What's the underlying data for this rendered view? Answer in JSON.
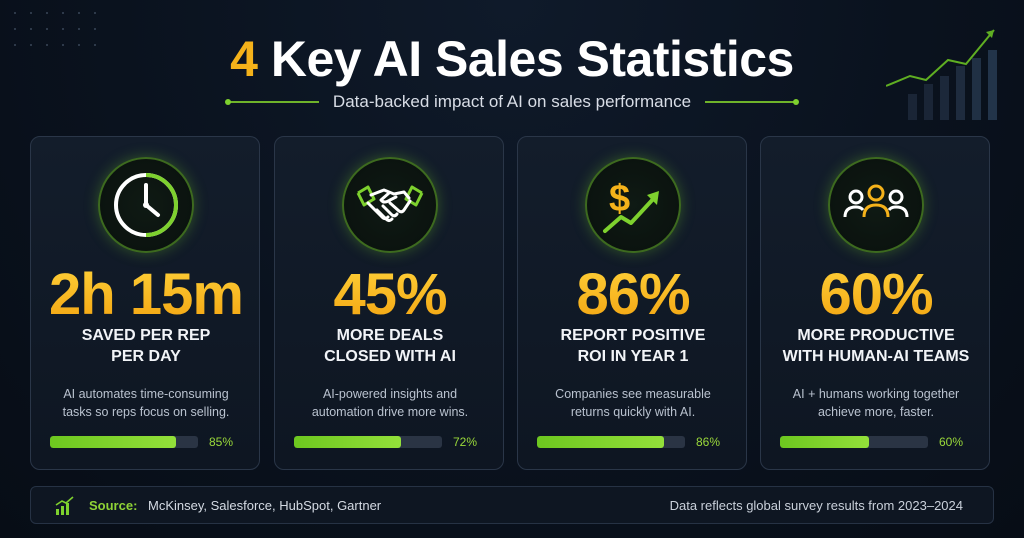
{
  "header": {
    "title_num": "4",
    "title_rest": " Key AI Sales Statistics",
    "subtitle": "Data-backed impact of AI on sales performance"
  },
  "colors": {
    "accent_green": "#7ed12e",
    "accent_gold": "#f5b21a",
    "background": "#0a121e"
  },
  "cards": [
    {
      "icon": "clock-icon",
      "stat": "2h 15m",
      "label_line1": "SAVED PER REP",
      "label_line2": "PER DAY",
      "desc_line1": "AI automates time-consuming",
      "desc_line2": "tasks so reps focus on selling.",
      "progress": 0.85,
      "pct": "85%"
    },
    {
      "icon": "handshake-icon",
      "stat": "45%",
      "label_line1": "MORE DEALS",
      "label_line2": "CLOSED WITH AI",
      "desc_line1": "AI-powered insights and",
      "desc_line2": "automation drive more wins.",
      "progress": 0.72,
      "pct": "72%"
    },
    {
      "icon": "dollar-trend-icon",
      "stat": "86%",
      "label_line1": "REPORT POSITIVE",
      "label_line2": "ROI IN YEAR 1",
      "desc_line1": "Companies see measurable",
      "desc_line2": "returns quickly with AI.",
      "progress": 0.86,
      "pct": "86%"
    },
    {
      "icon": "team-icon",
      "stat": "60%",
      "label_line1": "MORE PRODUCTIVE",
      "label_line2": "WITH HUMAN-AI TEAMS",
      "desc_line1": "AI + humans working together",
      "desc_line2": "achieve more, faster.",
      "progress": 0.6,
      "pct": "60%"
    }
  ],
  "footer": {
    "source_label": "Source:",
    "source_text": "McKinsey, Salesforce, HubSpot, Gartner",
    "note": "Data reflects global survey results from 2023–2024"
  }
}
